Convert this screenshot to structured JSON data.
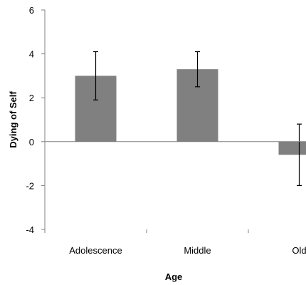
{
  "chart_data": {
    "type": "bar",
    "categories": [
      "Adolescence",
      "Middle",
      "Old"
    ],
    "values": [
      3.0,
      3.3,
      -0.6
    ],
    "error_low": [
      1.9,
      2.5,
      -2.0
    ],
    "error_high": [
      4.1,
      4.1,
      0.8
    ],
    "xlabel": "Age",
    "ylabel": "Dying of Self",
    "ylim": [
      -4,
      6
    ],
    "yticks": [
      -4,
      -2,
      0,
      2,
      4,
      6
    ],
    "grid": false,
    "legend": "none",
    "bar_color": "#808080"
  }
}
